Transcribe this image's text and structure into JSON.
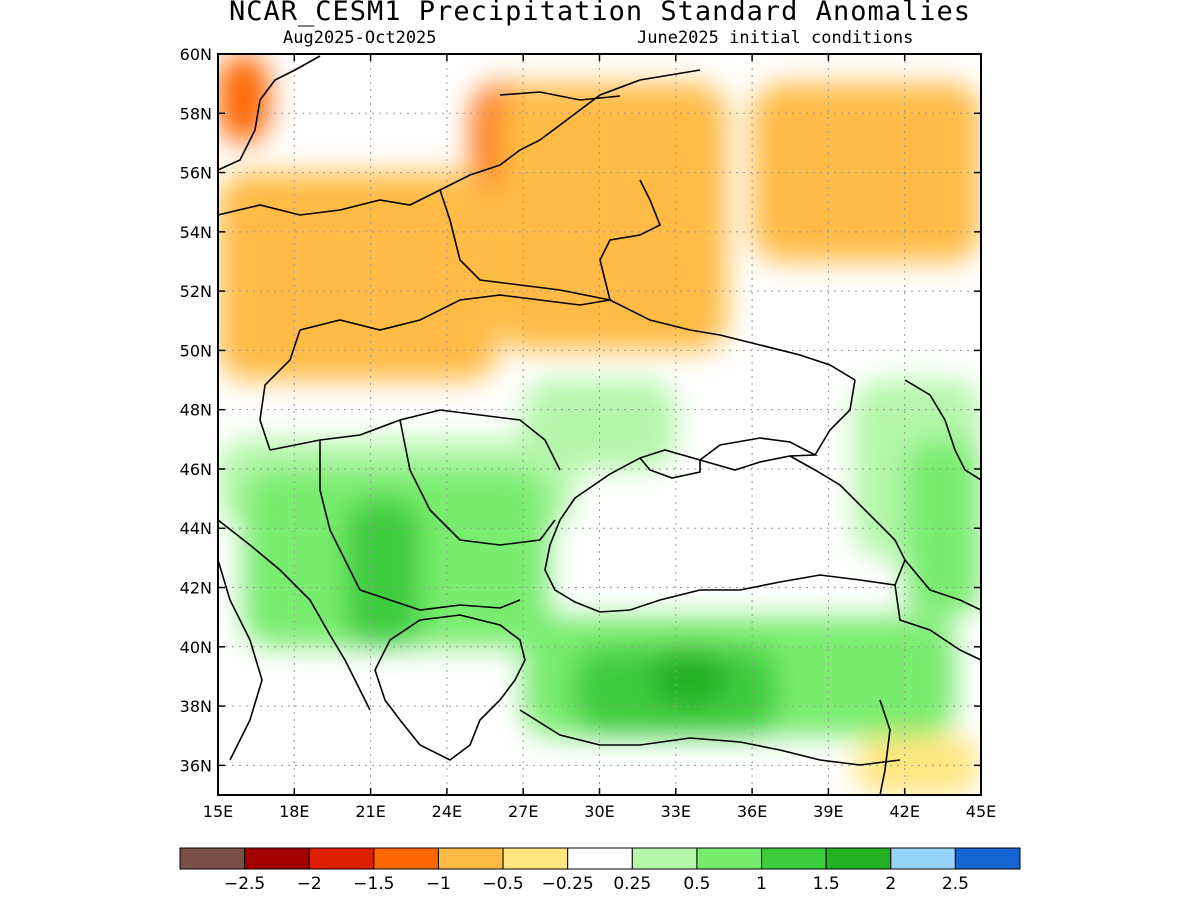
{
  "header": {
    "title": "NCAR_CESM1 Precipitation Standard Anomalies",
    "period": "Aug2025-Oct2025",
    "init": "June2025 initial conditions"
  },
  "map": {
    "lon_range": [
      15,
      45
    ],
    "lat_range": [
      35,
      60
    ],
    "lon_ticks": [
      {
        "v": 15,
        "label": "15E"
      },
      {
        "v": 18,
        "label": "18E"
      },
      {
        "v": 21,
        "label": "21E"
      },
      {
        "v": 24,
        "label": "24E"
      },
      {
        "v": 27,
        "label": "27E"
      },
      {
        "v": 30,
        "label": "30E"
      },
      {
        "v": 33,
        "label": "33E"
      },
      {
        "v": 36,
        "label": "36E"
      },
      {
        "v": 39,
        "label": "39E"
      },
      {
        "v": 42,
        "label": "42E"
      },
      {
        "v": 45,
        "label": "45E"
      }
    ],
    "lat_ticks": [
      {
        "v": 60,
        "label": "60N"
      },
      {
        "v": 58,
        "label": "58N"
      },
      {
        "v": 56,
        "label": "56N"
      },
      {
        "v": 54,
        "label": "54N"
      },
      {
        "v": 52,
        "label": "52N"
      },
      {
        "v": 50,
        "label": "50N"
      },
      {
        "v": 48,
        "label": "48N"
      },
      {
        "v": 46,
        "label": "46N"
      },
      {
        "v": 44,
        "label": "44N"
      },
      {
        "v": 42,
        "label": "42N"
      },
      {
        "v": 40,
        "label": "40N"
      },
      {
        "v": 38,
        "label": "38N"
      },
      {
        "v": 36,
        "label": "36N"
      }
    ],
    "grid": true
  },
  "legend": {
    "colors": [
      "#7a4f45",
      "#a50000",
      "#dd1e00",
      "#ff6600",
      "#ffbb44",
      "#ffe680",
      "#ffffff",
      "#b4f7a9",
      "#78ec6e",
      "#3dcc3d",
      "#22b122",
      "#96d2fa",
      "#1464d2"
    ],
    "labels": [
      "-2.5",
      "-2",
      "-1.5",
      "-1",
      "-0.5",
      "-0.25",
      "0.25",
      "0.5",
      "1",
      "1.5",
      "2",
      "2.5"
    ]
  },
  "anomaly_regions": [
    {
      "class": "-1",
      "color": "#ff6600",
      "lon": [
        15,
        17
      ],
      "lat": [
        57,
        60
      ]
    },
    {
      "class": "-1",
      "color": "#ff6600",
      "lon": [
        15,
        22
      ],
      "lat": [
        51,
        54
      ]
    },
    {
      "class": "-1",
      "color": "#ff6600",
      "lon": [
        25,
        30
      ],
      "lat": [
        54,
        59
      ]
    },
    {
      "class": "-1",
      "color": "#ff6600",
      "lon": [
        32,
        34
      ],
      "lat": [
        51,
        53
      ]
    },
    {
      "class": "-0.5",
      "color": "#ffbb44",
      "lon": [
        15,
        26
      ],
      "lat": [
        49,
        56
      ]
    },
    {
      "class": "-0.5",
      "color": "#ffbb44",
      "lon": [
        26,
        35
      ],
      "lat": [
        50,
        59
      ]
    },
    {
      "class": "-0.5",
      "color": "#ffbb44",
      "lon": [
        36,
        45
      ],
      "lat": [
        53,
        59
      ]
    },
    {
      "class": "0.5",
      "color": "#b4f7a9",
      "lon": [
        15,
        29
      ],
      "lat": [
        44,
        47
      ]
    },
    {
      "class": "0.5",
      "color": "#b4f7a9",
      "lon": [
        27,
        33
      ],
      "lat": [
        46,
        49
      ]
    },
    {
      "class": "0.5",
      "color": "#b4f7a9",
      "lon": [
        40,
        45
      ],
      "lat": [
        43,
        49
      ]
    },
    {
      "class": "1",
      "color": "#78ec6e",
      "lon": [
        16,
        28
      ],
      "lat": [
        40,
        46
      ]
    },
    {
      "class": "1",
      "color": "#78ec6e",
      "lon": [
        27,
        44
      ],
      "lat": [
        37,
        41
      ]
    },
    {
      "class": "1",
      "color": "#78ec6e",
      "lon": [
        42,
        45
      ],
      "lat": [
        41,
        47
      ]
    },
    {
      "class": "1.5",
      "color": "#3dcc3d",
      "lon": [
        20,
        23
      ],
      "lat": [
        40,
        45
      ]
    },
    {
      "class": "1.5",
      "color": "#3dcc3d",
      "lon": [
        29,
        37
      ],
      "lat": [
        37,
        40
      ]
    },
    {
      "class": "2",
      "color": "#22b122",
      "lon": [
        32,
        35
      ],
      "lat": [
        38,
        40
      ]
    },
    {
      "class": "-0.25",
      "color": "#ffe680",
      "lon": [
        40,
        45
      ],
      "lat": [
        35,
        37
      ]
    }
  ]
}
